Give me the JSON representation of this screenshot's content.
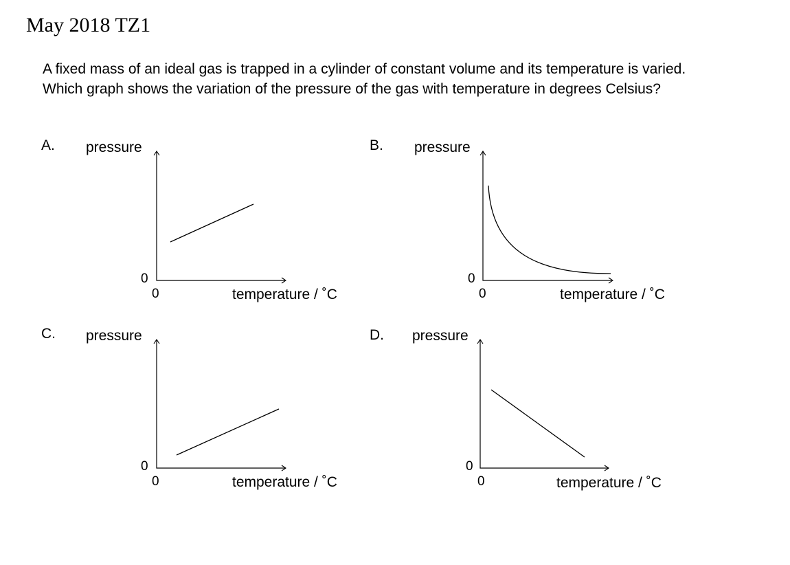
{
  "header": {
    "title": "May 2018 TZ1"
  },
  "question": {
    "text": "A fixed mass of an ideal gas is trapped in a cylinder of constant volume and its temperature is varied.  Which graph shows the variation of the pressure of the gas with temperature in degrees Celsius?"
  },
  "options": [
    {
      "letter": "A.",
      "y_label": "pressure",
      "x_label": "temperature / ˚C",
      "origin_y": "0",
      "origin_x": "0",
      "graph": "straight line with positive gradient, positive pressure intercept"
    },
    {
      "letter": "B.",
      "y_label": "pressure",
      "x_label": "temperature / ˚C",
      "origin_y": "0",
      "origin_x": "0",
      "graph": "curve decreasing towards a constant value"
    },
    {
      "letter": "C.",
      "y_label": "pressure",
      "x_label": "temperature / ˚C",
      "origin_y": "0",
      "origin_x": "0",
      "graph": "straight line with positive gradient, lower intercept"
    },
    {
      "letter": "D.",
      "y_label": "pressure",
      "x_label": "temperature / ˚C",
      "origin_y": "0",
      "origin_x": "0",
      "graph": "straight line with negative gradient"
    }
  ]
}
